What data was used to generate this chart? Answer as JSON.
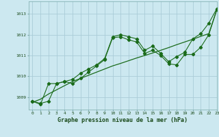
{
  "title": "Graphe pression niveau de la mer (hPa)",
  "background_color": "#cce8f0",
  "grid_color": "#aaccd8",
  "line_color": "#1a6b1a",
  "xlim": [
    -0.5,
    23
  ],
  "ylim": [
    1008.4,
    1013.6
  ],
  "yticks": [
    1009,
    1010,
    1011,
    1012,
    1013
  ],
  "xticks": [
    0,
    1,
    2,
    3,
    4,
    5,
    6,
    7,
    8,
    9,
    10,
    11,
    12,
    13,
    14,
    15,
    16,
    17,
    18,
    19,
    20,
    21,
    22,
    23
  ],
  "series_jagged1": [
    1008.8,
    1008.65,
    1009.65,
    1009.65,
    1009.75,
    1009.85,
    1010.15,
    1010.35,
    1010.55,
    1010.85,
    1011.9,
    1012.0,
    1011.9,
    1011.8,
    1011.25,
    1011.45,
    1011.1,
    1010.7,
    1010.95,
    1011.15,
    1011.8,
    1012.05,
    1012.55,
    1013.25
  ],
  "series_jagged2": [
    1008.8,
    1008.7,
    1008.8,
    1009.65,
    1009.75,
    1009.65,
    1009.9,
    1010.2,
    1010.5,
    1010.8,
    1011.85,
    1011.9,
    1011.75,
    1011.65,
    1011.1,
    1011.25,
    1011.0,
    1010.6,
    1010.55,
    1011.05,
    1011.05,
    1011.4,
    1012.0,
    1013.2
  ],
  "series_smooth": [
    1008.75,
    1008.9,
    1009.15,
    1009.35,
    1009.55,
    1009.75,
    1009.9,
    1010.05,
    1010.2,
    1010.35,
    1010.5,
    1010.62,
    1010.75,
    1010.88,
    1011.0,
    1011.12,
    1011.25,
    1011.38,
    1011.52,
    1011.65,
    1011.78,
    1011.92,
    1012.05,
    1013.2
  ]
}
